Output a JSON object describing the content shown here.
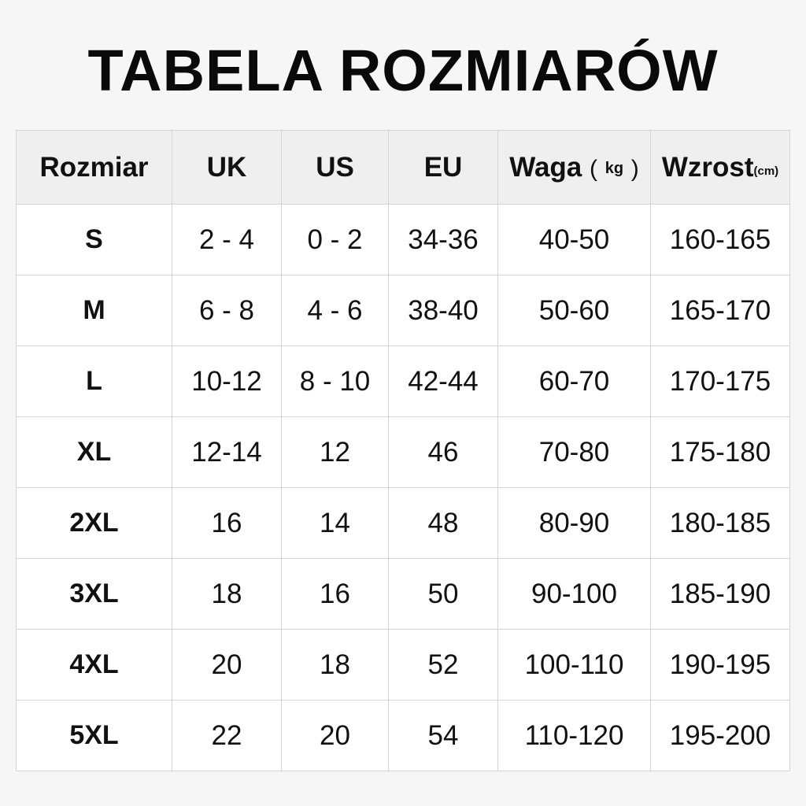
{
  "title": "TABELA ROZMIARÓW",
  "table": {
    "headers": {
      "size": "Rozmiar",
      "uk": "UK",
      "us": "US",
      "eu": "EU",
      "weight": "Waga",
      "weight_unit": "kg",
      "height": "Wzrost",
      "height_unit": "(cm)"
    },
    "rows": [
      {
        "size": "S",
        "uk": "2 - 4",
        "us": "0 - 2",
        "eu": "34-36",
        "weight": "40-50",
        "height": "160-165"
      },
      {
        "size": "M",
        "uk": "6 - 8",
        "us": "4 - 6",
        "eu": "38-40",
        "weight": "50-60",
        "height": "165-170"
      },
      {
        "size": "L",
        "uk": "10-12",
        "us": "8 - 10",
        "eu": "42-44",
        "weight": "60-70",
        "height": "170-175"
      },
      {
        "size": "XL",
        "uk": "12-14",
        "us": "12",
        "eu": "46",
        "weight": "70-80",
        "height": "175-180"
      },
      {
        "size": "2XL",
        "uk": "16",
        "us": "14",
        "eu": "48",
        "weight": "80-90",
        "height": "180-185"
      },
      {
        "size": "3XL",
        "uk": "18",
        "us": "16",
        "eu": "50",
        "weight": "90-100",
        "height": "185-190"
      },
      {
        "size": "4XL",
        "uk": "20",
        "us": "18",
        "eu": "52",
        "weight": "100-110",
        "height": "190-195"
      },
      {
        "size": "5XL",
        "uk": "22",
        "us": "20",
        "eu": "54",
        "weight": "110-120",
        "height": "195-200"
      }
    ]
  }
}
